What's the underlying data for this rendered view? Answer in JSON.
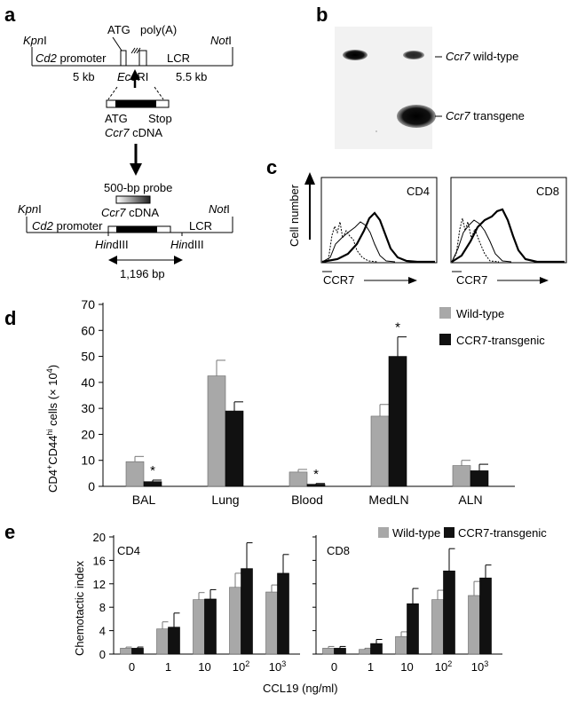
{
  "panel_letters": {
    "a": "a",
    "b": "b",
    "c": "c",
    "d": "d",
    "e": "e"
  },
  "panel_a": {
    "construct1": {
      "kpn_italic": "Kpn",
      "kpn_rest": "I",
      "atg": "ATG",
      "polya": "poly(A)",
      "not_italic": "Not",
      "not_rest": "I",
      "promoter_italic": "Cd2",
      "promoter_rest": " promoter",
      "lcr": "LCR",
      "left_size": "5 kb",
      "right_size": "5.5 kb",
      "eco_italic": "Eco",
      "eco_rest": "RI"
    },
    "cdna_insert": {
      "atg": "ATG",
      "stop": "Stop",
      "name_italic": "Ccr7",
      "name_rest": " cDNA"
    },
    "probe": {
      "label": "500-bp probe"
    },
    "construct2": {
      "kpn_italic": "Kpn",
      "kpn_rest": "I",
      "not_italic": "Not",
      "not_rest": "I",
      "promoter_italic": "Cd2",
      "promoter_rest": " promoter",
      "cdna_italic": "Ccr7",
      "cdna_rest": " cDNA",
      "lcr": "LCR",
      "hind1_italic": "Hin",
      "hind1_rest": "dIII",
      "hind2_italic": "Hin",
      "hind2_rest": "dIII",
      "fragment": "1,196 bp"
    }
  },
  "panel_b": {
    "band_top_italic": "Ccr7",
    "band_top_rest": " wild-type",
    "band_bottom_italic": "Ccr7",
    "band_bottom_rest": " transgene"
  },
  "panel_c": {
    "ylabel": "Cell number",
    "plots": [
      {
        "title": "CD4",
        "xlabel": "CCR7"
      },
      {
        "title": "CD8",
        "xlabel": "CCR7"
      }
    ]
  },
  "chart_data": [
    {
      "type": "bar",
      "ylabel": "CD4+CD44hi cells (× 10^4)",
      "ylabel_parts": {
        "a": "CD4",
        "sup1": "+",
        "b": "CD44",
        "sup2": "hi",
        "c": " cells (× 10",
        "sup3": "4",
        "d": ")"
      },
      "ylim": [
        0,
        70
      ],
      "yticks": [
        0,
        10,
        20,
        30,
        40,
        50,
        60,
        70
      ],
      "categories": [
        "BAL",
        "Lung",
        "Blood",
        "MedLN",
        "ALN"
      ],
      "series": [
        {
          "name": "Wild-type",
          "color": "#a8a8a8",
          "values": [
            9.5,
            42.5,
            5.5,
            27,
            8
          ],
          "errors": [
            2,
            6,
            1,
            4.5,
            2
          ]
        },
        {
          "name": "CCR7-transgenic",
          "color": "#111111",
          "values": [
            1.8,
            29,
            0.8,
            50,
            6
          ],
          "errors": [
            0.6,
            3.5,
            0.3,
            7.5,
            2.5
          ]
        }
      ],
      "significance": [
        "*",
        "",
        "*",
        "*",
        ""
      ],
      "legend": "top-right"
    },
    {
      "type": "bar",
      "title": "CD4",
      "ylabel": "Chemotactic index",
      "xlabel": "CCL19 (ng/ml)",
      "ylim": [
        0,
        20
      ],
      "yticks": [
        0,
        4,
        8,
        12,
        16,
        20
      ],
      "categories": [
        "0",
        "1",
        "10",
        "10^2",
        "10^3"
      ],
      "series": [
        {
          "name": "Wild-type",
          "color": "#a8a8a8",
          "values": [
            1,
            4.3,
            9.3,
            11.4,
            10.6
          ],
          "errors": [
            0.2,
            1.2,
            1.2,
            2.4,
            1.2
          ]
        },
        {
          "name": "CCR7-transgenic",
          "color": "#111111",
          "values": [
            1,
            4.6,
            9.4,
            14.6,
            13.8
          ],
          "errors": [
            0.2,
            2.4,
            1.6,
            4.4,
            3.2
          ]
        }
      ]
    },
    {
      "type": "bar",
      "title": "CD8",
      "categories": [
        "0",
        "1",
        "10",
        "10^2",
        "10^3"
      ],
      "ylim": [
        0,
        20
      ],
      "series": [
        {
          "name": "Wild-type",
          "color": "#a8a8a8",
          "values": [
            1,
            0.8,
            3,
            9.3,
            10
          ],
          "errors": [
            0.3,
            0.2,
            0.8,
            1.6,
            2.4
          ]
        },
        {
          "name": "CCR7-transgenic",
          "color": "#111111",
          "values": [
            1,
            1.8,
            8.6,
            14.2,
            13
          ],
          "errors": [
            0.3,
            0.7,
            2.6,
            3.8,
            2.2
          ]
        }
      ],
      "legend": "top-right"
    }
  ],
  "e_category_parts": [
    {
      "base": "0",
      "sup": ""
    },
    {
      "base": "1",
      "sup": ""
    },
    {
      "base": "10",
      "sup": ""
    },
    {
      "base": "10",
      "sup": "2"
    },
    {
      "base": "10",
      "sup": "3"
    }
  ]
}
